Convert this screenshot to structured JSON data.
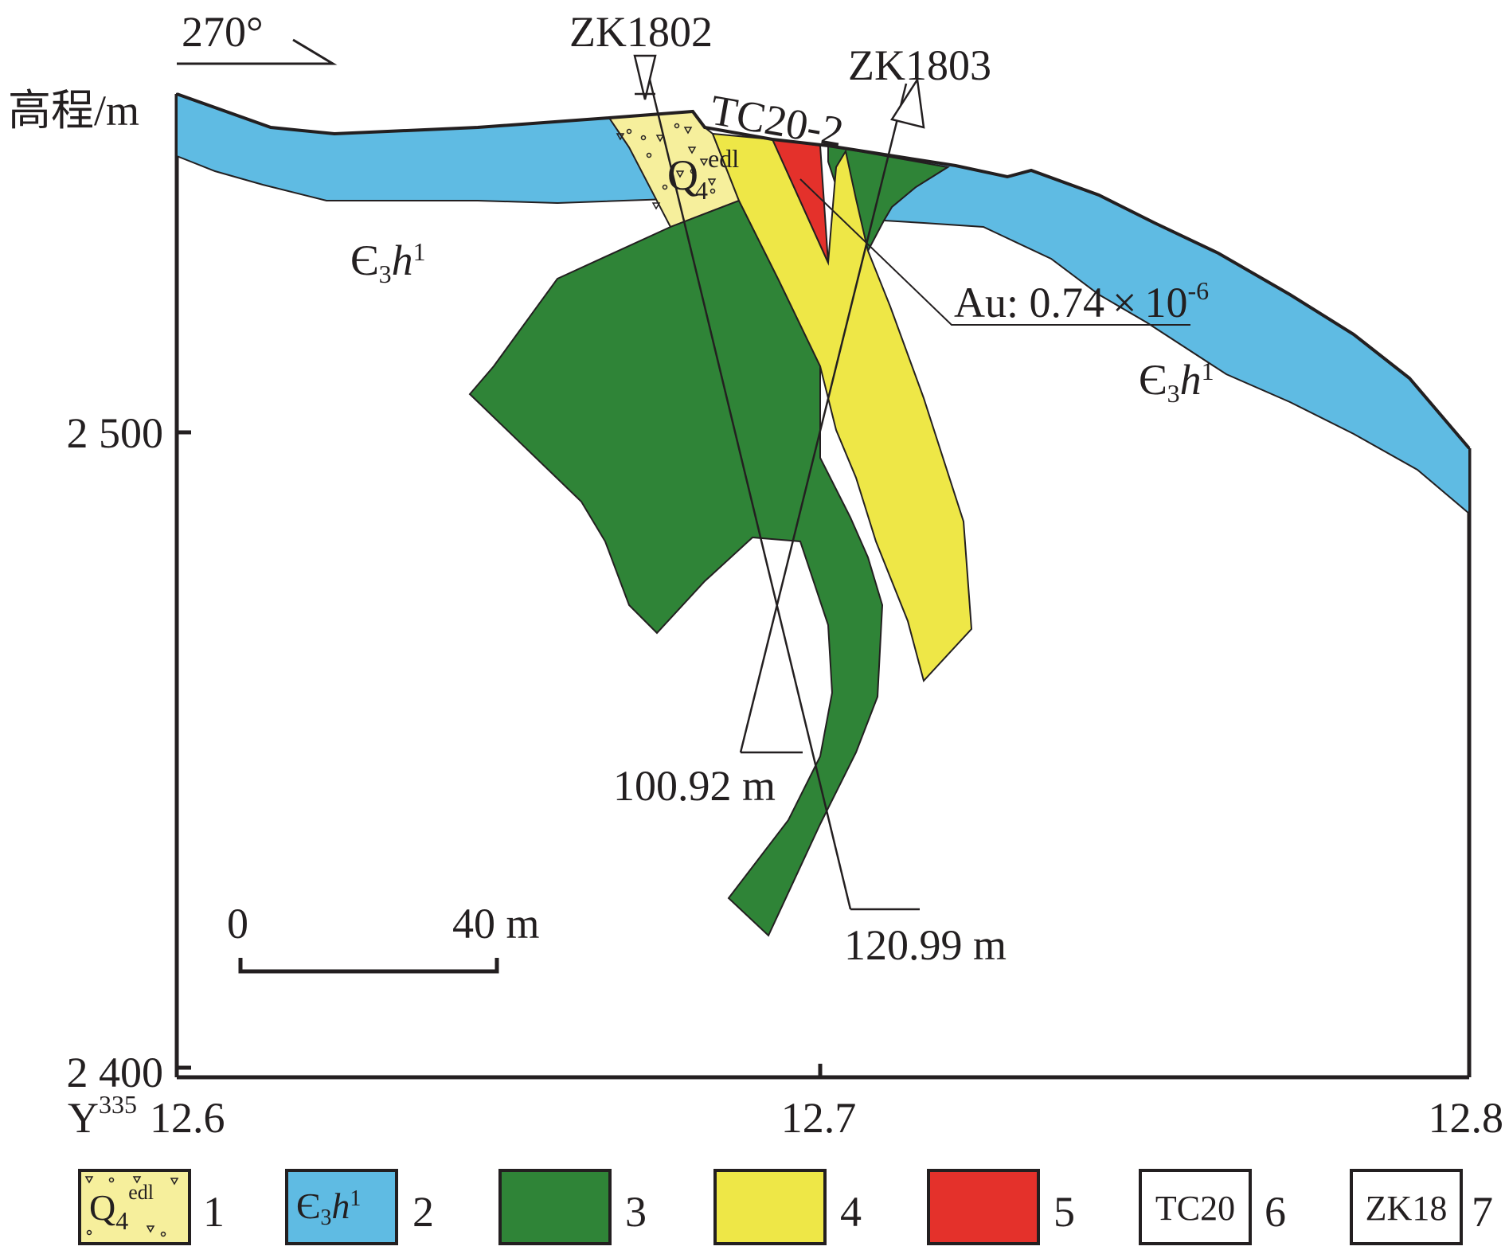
{
  "orientation": "270°",
  "y_axis": {
    "label": "高程/m",
    "ticks": [
      "2 500",
      "2 400"
    ]
  },
  "x_axis": {
    "prefix": "Y",
    "prefix_superscript": "335",
    "ticks": [
      "12.6",
      "12.7",
      "12.8"
    ]
  },
  "drillholes": [
    {
      "name": "ZK1802",
      "depth": "120.99 m"
    },
    {
      "name": "ZK1803",
      "depth": "100.92 m"
    }
  ],
  "trench": "TC20-2",
  "sample": {
    "text": "Au: 0.74",
    "exponent": "-6",
    "times": "×",
    "base": "10"
  },
  "units": {
    "quaternary": {
      "main": "Q",
      "sub": "4",
      "sup": "edl"
    },
    "cambrian": {
      "prefix": "Є",
      "sub": "3",
      "h": "h",
      "sup": "1"
    }
  },
  "scale_bar": {
    "start": "0",
    "end": "40 m"
  },
  "legend": [
    {
      "number": "1",
      "fill": "#f6ef9c",
      "text_main": "Q",
      "text_sub": "4",
      "text_sup": "edl"
    },
    {
      "number": "2",
      "fill": "#5fbbe3",
      "text_main": "Є",
      "text_sub": "3",
      "text_h": "h",
      "text_sup": "1"
    },
    {
      "number": "3",
      "fill": "#2f8437"
    },
    {
      "number": "4",
      "fill": "#eee747"
    },
    {
      "number": "5",
      "fill": "#e4312b"
    },
    {
      "number": "6",
      "fill": "#ffffff",
      "text": "TC20"
    },
    {
      "number": "7",
      "fill": "#ffffff",
      "text": "ZK18"
    }
  ],
  "colors": {
    "blue": "#5fbbe3",
    "green": "#2f8437",
    "yellow": "#eee747",
    "pale_yellow": "#f6ef9c",
    "red": "#e4312b",
    "line": "#231f20"
  }
}
